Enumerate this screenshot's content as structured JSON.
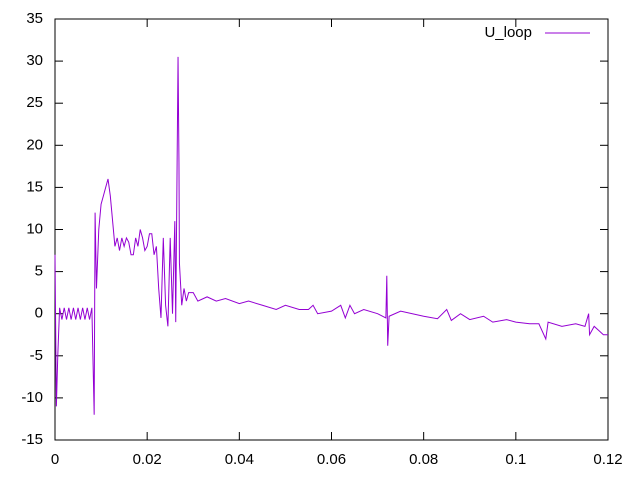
{
  "chart_data": {
    "type": "line",
    "xlim": [
      0,
      0.12
    ],
    "xticks": [
      0,
      0.02,
      0.04,
      0.06,
      0.08,
      0.1,
      0.12
    ],
    "ylim": [
      -15,
      35
    ],
    "yticks": [
      -15,
      -10,
      -5,
      0,
      5,
      10,
      15,
      20,
      25,
      30,
      35
    ],
    "legend": "upper right",
    "x": [
      0,
      0.0003,
      0.0006,
      0.001,
      0.0015,
      0.002,
      0.0025,
      0.003,
      0.0035,
      0.004,
      0.0045,
      0.005,
      0.0055,
      0.006,
      0.0065,
      0.007,
      0.0075,
      0.008,
      0.0085,
      0.0087,
      0.009,
      0.0095,
      0.01,
      0.0105,
      0.011,
      0.0115,
      0.012,
      0.013,
      0.0135,
      0.014,
      0.0145,
      0.015,
      0.0155,
      0.016,
      0.0165,
      0.017,
      0.0175,
      0.018,
      0.0185,
      0.019,
      0.0195,
      0.02,
      0.0205,
      0.021,
      0.0215,
      0.022,
      0.0225,
      0.023,
      0.0235,
      0.024,
      0.0245,
      0.025,
      0.0255,
      0.026,
      0.0262,
      0.0265,
      0.0267,
      0.0269,
      0.027,
      0.0275,
      0.028,
      0.0285,
      0.029,
      0.03,
      0.031,
      0.033,
      0.035,
      0.037,
      0.04,
      0.042,
      0.045,
      0.048,
      0.05,
      0.053,
      0.055,
      0.056,
      0.057,
      0.06,
      0.062,
      0.063,
      0.064,
      0.065,
      0.067,
      0.07,
      0.0718,
      0.072,
      0.0722,
      0.0725,
      0.075,
      0.08,
      0.083,
      0.085,
      0.086,
      0.088,
      0.09,
      0.093,
      0.095,
      0.098,
      0.1,
      0.103,
      0.105,
      0.1065,
      0.107,
      0.11,
      0.113,
      0.115,
      0.1158,
      0.116,
      0.117,
      0.118,
      0.119,
      0.12
    ],
    "series": [
      {
        "name": "U_loop",
        "color": "#9400d3",
        "values": [
          7,
          -11,
          -5,
          0.7,
          -0.7,
          0.7,
          -0.7,
          0.7,
          -0.7,
          0.7,
          -0.7,
          0.7,
          -0.7,
          0.7,
          -0.7,
          0.7,
          -0.7,
          0.7,
          -12,
          12,
          3,
          10,
          13,
          14,
          15,
          16,
          14,
          8,
          9,
          7.5,
          9,
          8,
          9,
          8.5,
          7,
          7,
          9,
          8,
          10,
          9,
          7.5,
          8,
          9.5,
          9.5,
          7,
          8,
          3,
          -0.5,
          9,
          1,
          -1.5,
          9,
          0,
          11,
          -1,
          18,
          30.5,
          18,
          6,
          1,
          3,
          1.5,
          2.5,
          2.5,
          1.5,
          2,
          1.5,
          1.8,
          1.2,
          1.5,
          1,
          0.5,
          1,
          0.5,
          0.5,
          1,
          0,
          0.3,
          1,
          -0.5,
          1,
          0,
          0.5,
          0,
          -0.5,
          4.5,
          -3.8,
          -0.3,
          0.3,
          -0.3,
          -0.6,
          0.5,
          -0.8,
          0,
          -0.7,
          -0.3,
          -1,
          -0.7,
          -1,
          -1.2,
          -1.2,
          -3,
          -1,
          -1.5,
          -1.2,
          -1.5,
          0,
          -2.5,
          -1.5,
          -2,
          -2.5,
          -2.5
        ]
      }
    ]
  }
}
